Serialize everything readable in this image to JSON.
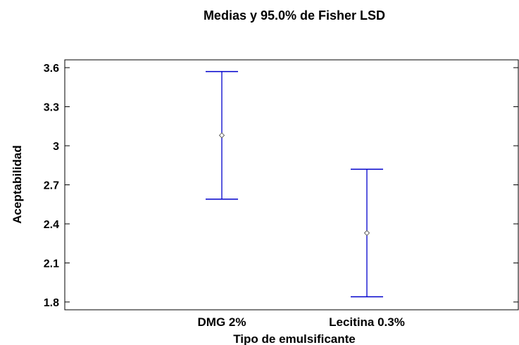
{
  "chart_data": {
    "type": "scatter",
    "title": "Medias y 95.0% de Fisher LSD",
    "xlabel": "Tipo de emulsificante",
    "ylabel": "Aceptabilidad",
    "categories": [
      "DMG 2%",
      "Lecitina 0.3%"
    ],
    "means": [
      3.08,
      2.33
    ],
    "lower": [
      2.59,
      1.84
    ],
    "upper": [
      3.57,
      2.82
    ],
    "yticks": [
      1.8,
      2.1,
      2.4,
      2.7,
      3,
      3.3,
      3.6
    ],
    "ytick_labels": [
      "1.8",
      "2.1",
      "2.4",
      "2.7",
      "3",
      "3.3",
      "3.6"
    ],
    "ylim": [
      1.74,
      3.66
    ],
    "grid": false,
    "series_color": "#0000cc"
  }
}
